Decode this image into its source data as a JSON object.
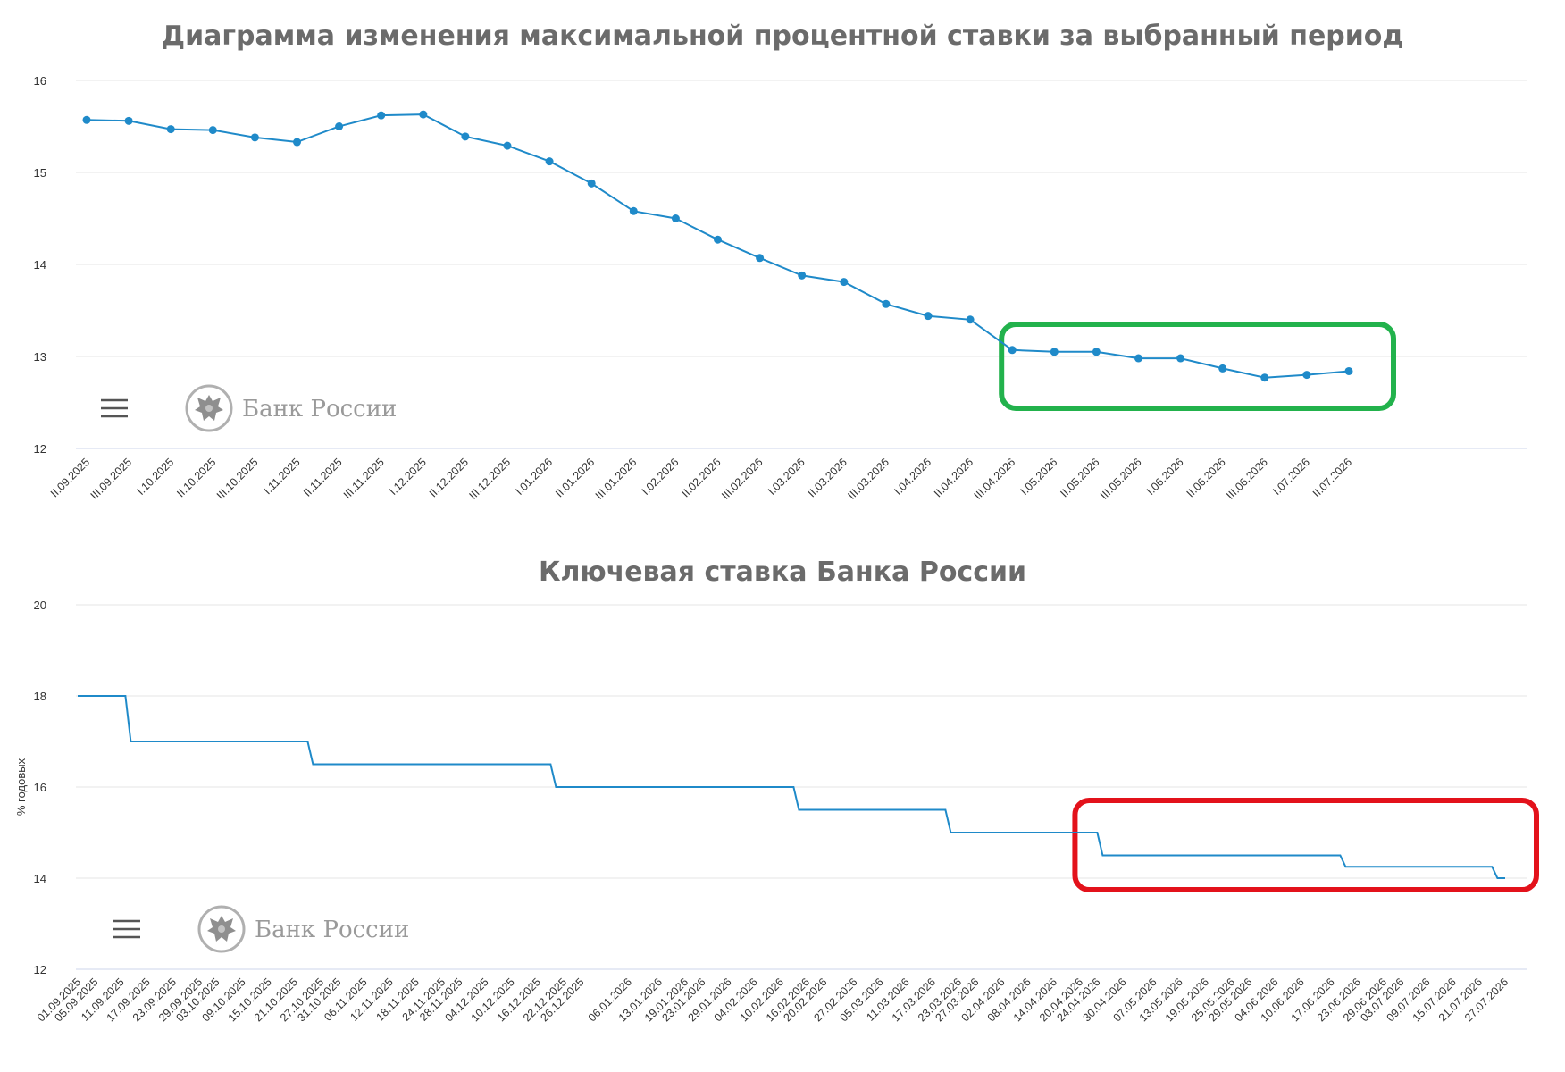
{
  "chart_data": [
    {
      "type": "line",
      "title": "Диаграмма изменения максимальной процентной ставки за выбранный период",
      "xlabel": "",
      "ylabel": "",
      "ylim": [
        12,
        16
      ],
      "yticks": [
        "12",
        "13",
        "14",
        "15",
        "16"
      ],
      "grid": true,
      "markers": true,
      "color": "#1f8ac9",
      "categories": [
        "II.09.2025",
        "III.09.2025",
        "I.10.2025",
        "II.10.2025",
        "III.10.2025",
        "I.11.2025",
        "II.11.2025",
        "III.11.2025",
        "I.12.2025",
        "II.12.2025",
        "III.12.2025",
        "I.01.2026",
        "II.01.2026",
        "III.01.2026",
        "I.02.2026",
        "II.02.2026",
        "III.02.2026",
        "I.03.2026",
        "II.03.2026",
        "III.03.2026",
        "I.04.2026",
        "II.04.2026",
        "III.04.2026",
        "I.05.2026",
        "II.05.2026",
        "III.05.2026",
        "I.06.2026",
        "II.06.2026",
        "III.06.2026",
        "I.07.2026",
        "II.07.2026"
      ],
      "values": [
        15.57,
        15.56,
        15.47,
        15.46,
        15.38,
        15.33,
        15.5,
        15.62,
        15.63,
        15.39,
        15.29,
        15.12,
        14.88,
        14.58,
        14.5,
        14.27,
        14.07,
        13.88,
        13.81,
        13.57,
        13.44,
        13.4,
        13.07,
        13.05,
        13.05,
        12.98,
        12.98,
        12.87,
        12.77,
        12.8,
        12.84
      ],
      "highlight": {
        "from": "III.04.2026",
        "to": "II.07.2026",
        "color": "#22b24c"
      },
      "menu_icon": "hamburger-icon",
      "logo_text": "Банк России",
      "logo_icon": "double-headed-eagle-icon"
    },
    {
      "type": "line",
      "step": true,
      "title": "Ключевая ставка Банка России",
      "xlabel": "",
      "ylabel": "% годовых",
      "ylim": [
        12,
        20
      ],
      "yticks": [
        "12",
        "14",
        "16",
        "18",
        "20"
      ],
      "grid": true,
      "markers": false,
      "color": "#1f8ac9",
      "categories": [
        "01.09.2025",
        "05.09.2025",
        "11.09.2025",
        "17.09.2025",
        "23.09.2025",
        "29.09.2025",
        "03.10.2025",
        "09.10.2025",
        "15.10.2025",
        "21.10.2025",
        "27.10.2025",
        "31.10.2025",
        "06.11.2025",
        "12.11.2025",
        "18.11.2025",
        "24.11.2025",
        "28.11.2025",
        "04.12.2025",
        "10.12.2025",
        "16.12.2025",
        "22.12.2025",
        "26.12.2025",
        "06.01.2026",
        "13.01.2026",
        "19.01.2026",
        "23.01.2026",
        "29.01.2026",
        "04.02.2026",
        "10.02.2026",
        "16.02.2026",
        "20.02.2026",
        "27.02.2026",
        "05.03.2026",
        "11.03.2026",
        "17.03.2026",
        "23.03.2026",
        "27.03.2026",
        "02.04.2026",
        "08.04.2026",
        "14.04.2026",
        "20.04.2026",
        "24.04.2026",
        "30.04.2026",
        "07.05.2026",
        "13.05.2026",
        "19.05.2026",
        "25.05.2026",
        "29.05.2026",
        "04.06.2026",
        "10.06.2026",
        "17.06.2026",
        "23.06.2026",
        "29.06.2026",
        "03.07.2026",
        "09.07.2026",
        "15.07.2026",
        "21.07.2026",
        "27.07.2026"
      ],
      "steps": [
        {
          "from": "01.09.2025",
          "to": "12.09.2025",
          "value": 18
        },
        {
          "from": "12.09.2025",
          "to": "24.10.2025",
          "value": 17
        },
        {
          "from": "24.10.2025",
          "to": "19.12.2025",
          "value": 16.5
        },
        {
          "from": "19.12.2025",
          "to": "13.02.2026",
          "value": 16
        },
        {
          "from": "13.02.2026",
          "to": "20.03.2026",
          "value": 15.5
        },
        {
          "from": "20.03.2026",
          "to": "24.04.2026",
          "value": 15
        },
        {
          "from": "24.04.2026",
          "to": "19.06.2026",
          "value": 14.5
        },
        {
          "from": "19.06.2026",
          "to": "24.07.2026",
          "value": 14.25
        },
        {
          "from": "24.07.2026",
          "to": "27.07.2026",
          "value": 14
        }
      ],
      "highlight": {
        "from": "24.04.2026",
        "to": "27.07.2026",
        "color": "#e3121b"
      },
      "menu_icon": "hamburger-icon",
      "logo_text": "Банк России",
      "logo_icon": "double-headed-eagle-icon"
    }
  ]
}
